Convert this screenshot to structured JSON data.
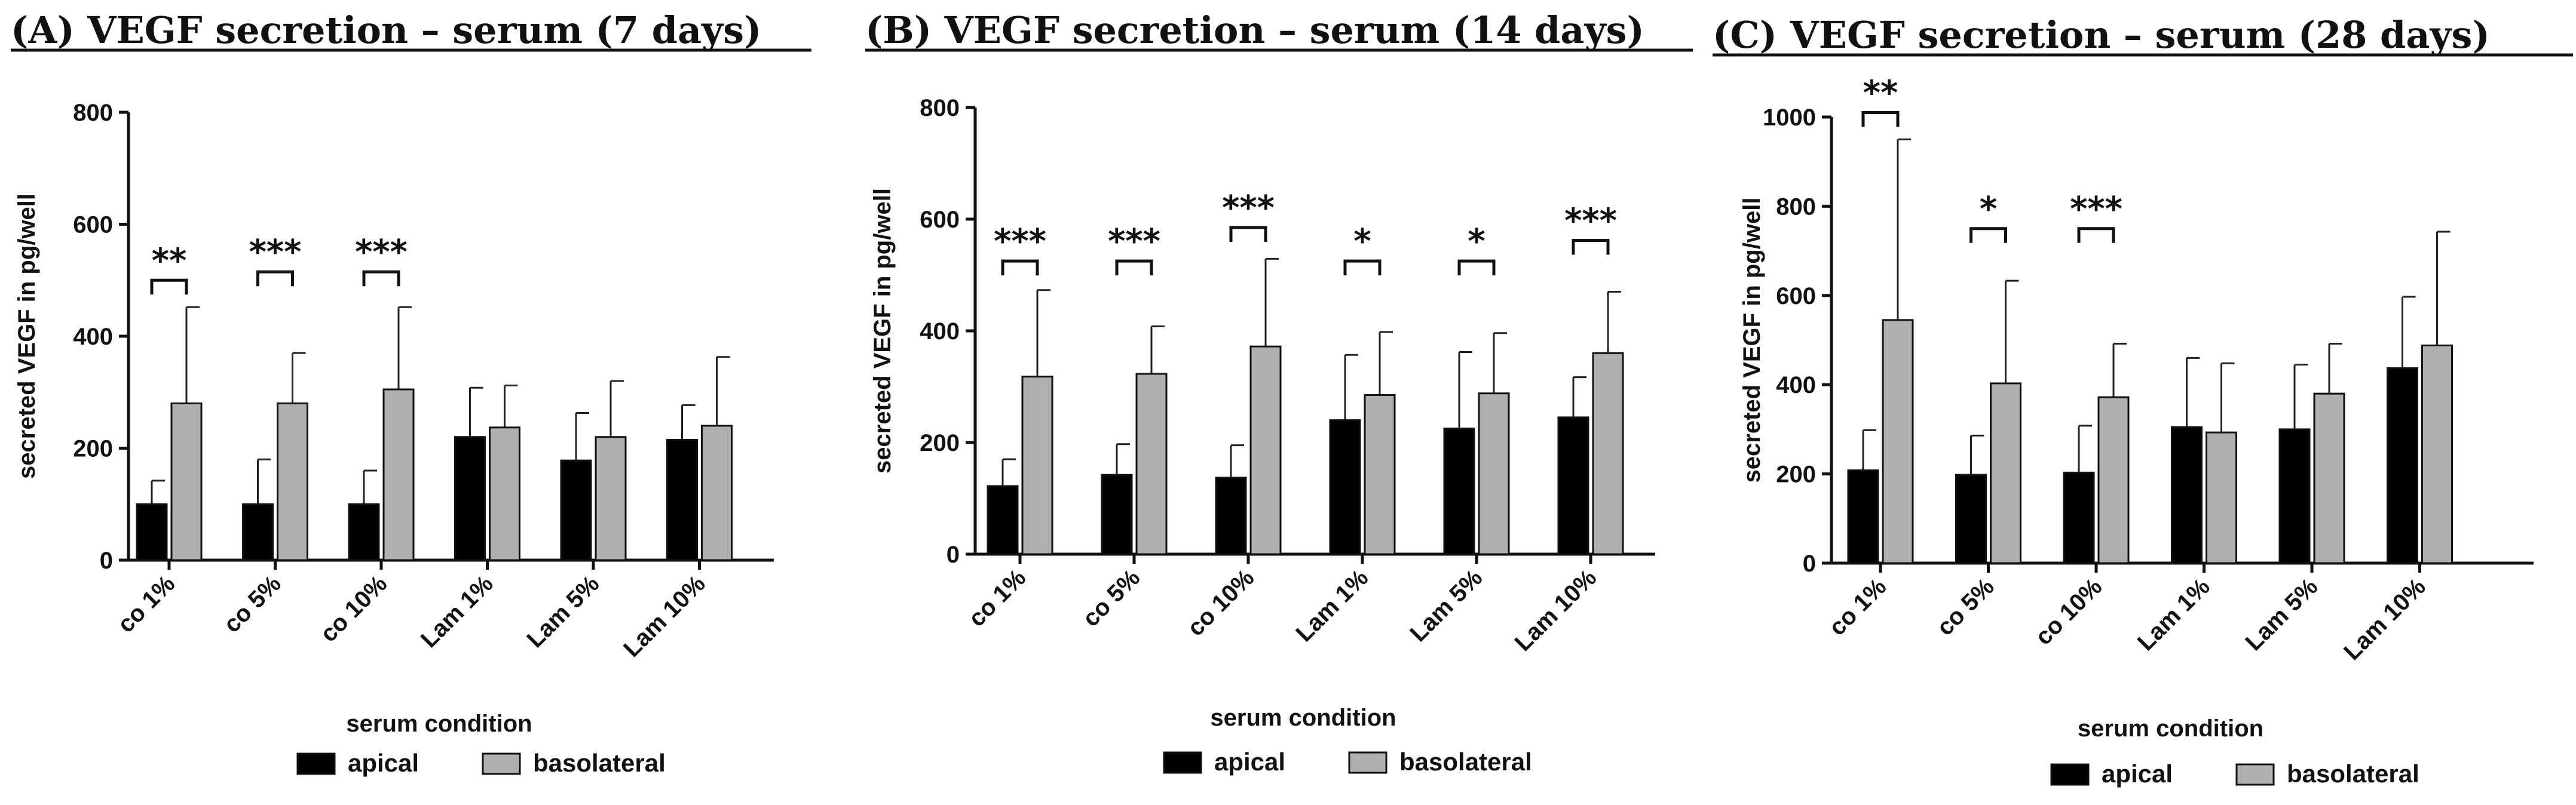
{
  "chart_data": [
    {
      "type": "bar",
      "title": "(A) VEGF secretion – serum (7 days)",
      "xlabel": "serum condition",
      "ylabel": "secreted VEGF in pg/well",
      "ylim": [
        0,
        800
      ],
      "yticks": [
        0,
        200,
        400,
        600,
        800
      ],
      "ytick_labels": [
        "0",
        "200",
        "400",
        "600",
        "800"
      ],
      "categories": [
        "co 1%",
        "co 5%",
        "co 10%",
        "Lam 1%",
        "Lam 5%",
        "Lam 10%"
      ],
      "legend": "bottom",
      "series": [
        {
          "name": "apical",
          "color": "#000000",
          "values": [
            100,
            100,
            100,
            220,
            178,
            215
          ],
          "errors": [
            42,
            80,
            60,
            88,
            85,
            62
          ]
        },
        {
          "name": "basolateral",
          "color": "#b0b0b0",
          "values": [
            280,
            280,
            305,
            237,
            220,
            240
          ],
          "errors": [
            172,
            90,
            147,
            75,
            100,
            123
          ]
        }
      ],
      "significance": [
        {
          "category": 0,
          "label": "**",
          "bracket_y": 500
        },
        {
          "category": 1,
          "label": "***",
          "bracket_y": 515
        },
        {
          "category": 2,
          "label": "***",
          "bracket_y": 515
        }
      ]
    },
    {
      "type": "bar",
      "title": "(B) VEGF secretion – serum (14 days)",
      "xlabel": "serum condition",
      "ylabel": "secreted VEGF in pg/well",
      "ylim": [
        0,
        800
      ],
      "yticks": [
        0,
        200,
        400,
        600,
        800
      ],
      "ytick_labels": [
        "0",
        "200",
        "400",
        "600",
        "800"
      ],
      "categories": [
        "co 1%",
        "co 5%",
        "co 10%",
        "Lam 1%",
        "Lam 5%",
        "Lam 10%"
      ],
      "legend": "bottom",
      "series": [
        {
          "name": "apical",
          "color": "#000000",
          "values": [
            122,
            142,
            137,
            240,
            225,
            245
          ],
          "errors": [
            48,
            55,
            58,
            117,
            137,
            72
          ]
        },
        {
          "name": "basolateral",
          "color": "#b0b0b0",
          "values": [
            318,
            323,
            372,
            285,
            288,
            360
          ],
          "errors": [
            155,
            85,
            157,
            113,
            108,
            110
          ]
        }
      ],
      "significance": [
        {
          "category": 0,
          "label": "***",
          "bracket_y": 525
        },
        {
          "category": 1,
          "label": "***",
          "bracket_y": 525
        },
        {
          "category": 2,
          "label": "***",
          "bracket_y": 585
        },
        {
          "category": 3,
          "label": "*",
          "bracket_y": 525
        },
        {
          "category": 4,
          "label": "*",
          "bracket_y": 525
        },
        {
          "category": 5,
          "label": "***",
          "bracket_y": 562
        }
      ]
    },
    {
      "type": "bar",
      "title": "(C) VEGF secretion – serum (28 days)",
      "xlabel": "serum condition",
      "ylabel": "secreted VEGF in pg/well",
      "ylim": [
        0,
        1000
      ],
      "yticks": [
        0,
        200,
        400,
        600,
        800,
        1000
      ],
      "ytick_labels": [
        "0",
        "200",
        "400",
        "600",
        "800",
        "1000"
      ],
      "categories": [
        "co 1%",
        "co 5%",
        "co 10%",
        "Lam 1%",
        "Lam 5%",
        "Lam 10%"
      ],
      "legend": "bottom",
      "series": [
        {
          "name": "apical",
          "color": "#000000",
          "values": [
            208,
            198,
            203,
            305,
            300,
            437
          ],
          "errors": [
            90,
            88,
            105,
            155,
            145,
            160
          ]
        },
        {
          "name": "basolateral",
          "color": "#b0b0b0",
          "values": [
            545,
            403,
            372,
            293,
            380,
            488
          ],
          "errors": [
            405,
            230,
            120,
            155,
            112,
            255
          ]
        }
      ],
      "significance": [
        {
          "category": 0,
          "label": "**",
          "bracket_y": 1010
        },
        {
          "category": 1,
          "label": "*",
          "bracket_y": 750
        },
        {
          "category": 2,
          "label": "***",
          "bracket_y": 750
        }
      ]
    }
  ]
}
